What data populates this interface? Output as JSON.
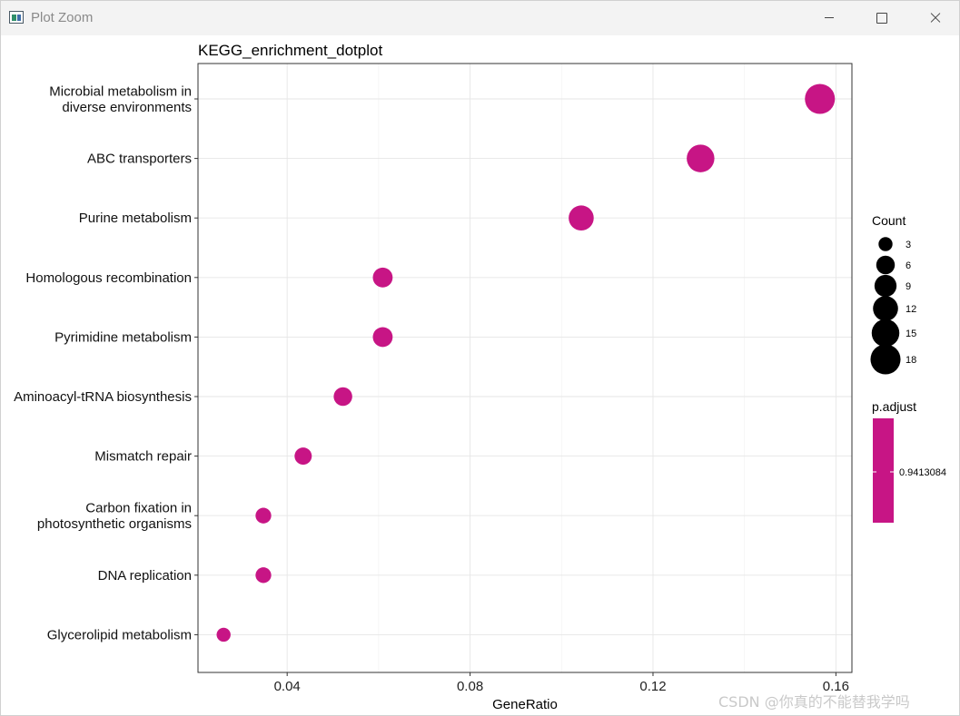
{
  "window": {
    "title": "Plot Zoom",
    "icon": "plot-zoom-app-icon"
  },
  "watermark": "CSDN @你真的不能替我学吗",
  "chart_data": {
    "type": "scatter",
    "title": "KEGG_enrichment_dotplot",
    "xlabel": "GeneRatio",
    "ylabel": "",
    "xlim": [
      0.0205,
      0.1635
    ],
    "xticks": [
      0.04,
      0.08,
      0.12,
      0.16
    ],
    "xtick_labels": [
      "0.04",
      "0.08",
      "0.12",
      "0.16"
    ],
    "grid": true,
    "categories": [
      [
        "Microbial metabolism in",
        "diverse environments"
      ],
      [
        "ABC transporters"
      ],
      [
        "Purine metabolism"
      ],
      [
        "Homologous recombination"
      ],
      [
        "Pyrimidine metabolism"
      ],
      [
        "Aminoacyl-tRNA biosynthesis"
      ],
      [
        "Mismatch repair"
      ],
      [
        "Carbon fixation in",
        "photosynthetic organisms"
      ],
      [
        "DNA replication"
      ],
      [
        "Glycerolipid metabolism"
      ]
    ],
    "points": [
      {
        "gene_ratio": 0.1565,
        "count": 18
      },
      {
        "gene_ratio": 0.1304,
        "count": 15
      },
      {
        "gene_ratio": 0.1043,
        "count": 12
      },
      {
        "gene_ratio": 0.0609,
        "count": 7
      },
      {
        "gene_ratio": 0.0609,
        "count": 7
      },
      {
        "gene_ratio": 0.0522,
        "count": 6
      },
      {
        "gene_ratio": 0.0435,
        "count": 5
      },
      {
        "gene_ratio": 0.0348,
        "count": 4
      },
      {
        "gene_ratio": 0.0348,
        "count": 4
      },
      {
        "gene_ratio": 0.0261,
        "count": 3
      }
    ],
    "point_color": "#C71585",
    "legend_size": {
      "title": "Count",
      "values": [
        3,
        6,
        9,
        12,
        15,
        18
      ],
      "labels": [
        "3",
        "6",
        "9",
        "12",
        "15",
        "18"
      ],
      "color": "#000000",
      "placement": "right"
    },
    "legend_color": {
      "title": "p.adjust",
      "labels": [
        "0.9413084"
      ],
      "color": "#C71585",
      "placement": "right"
    }
  }
}
